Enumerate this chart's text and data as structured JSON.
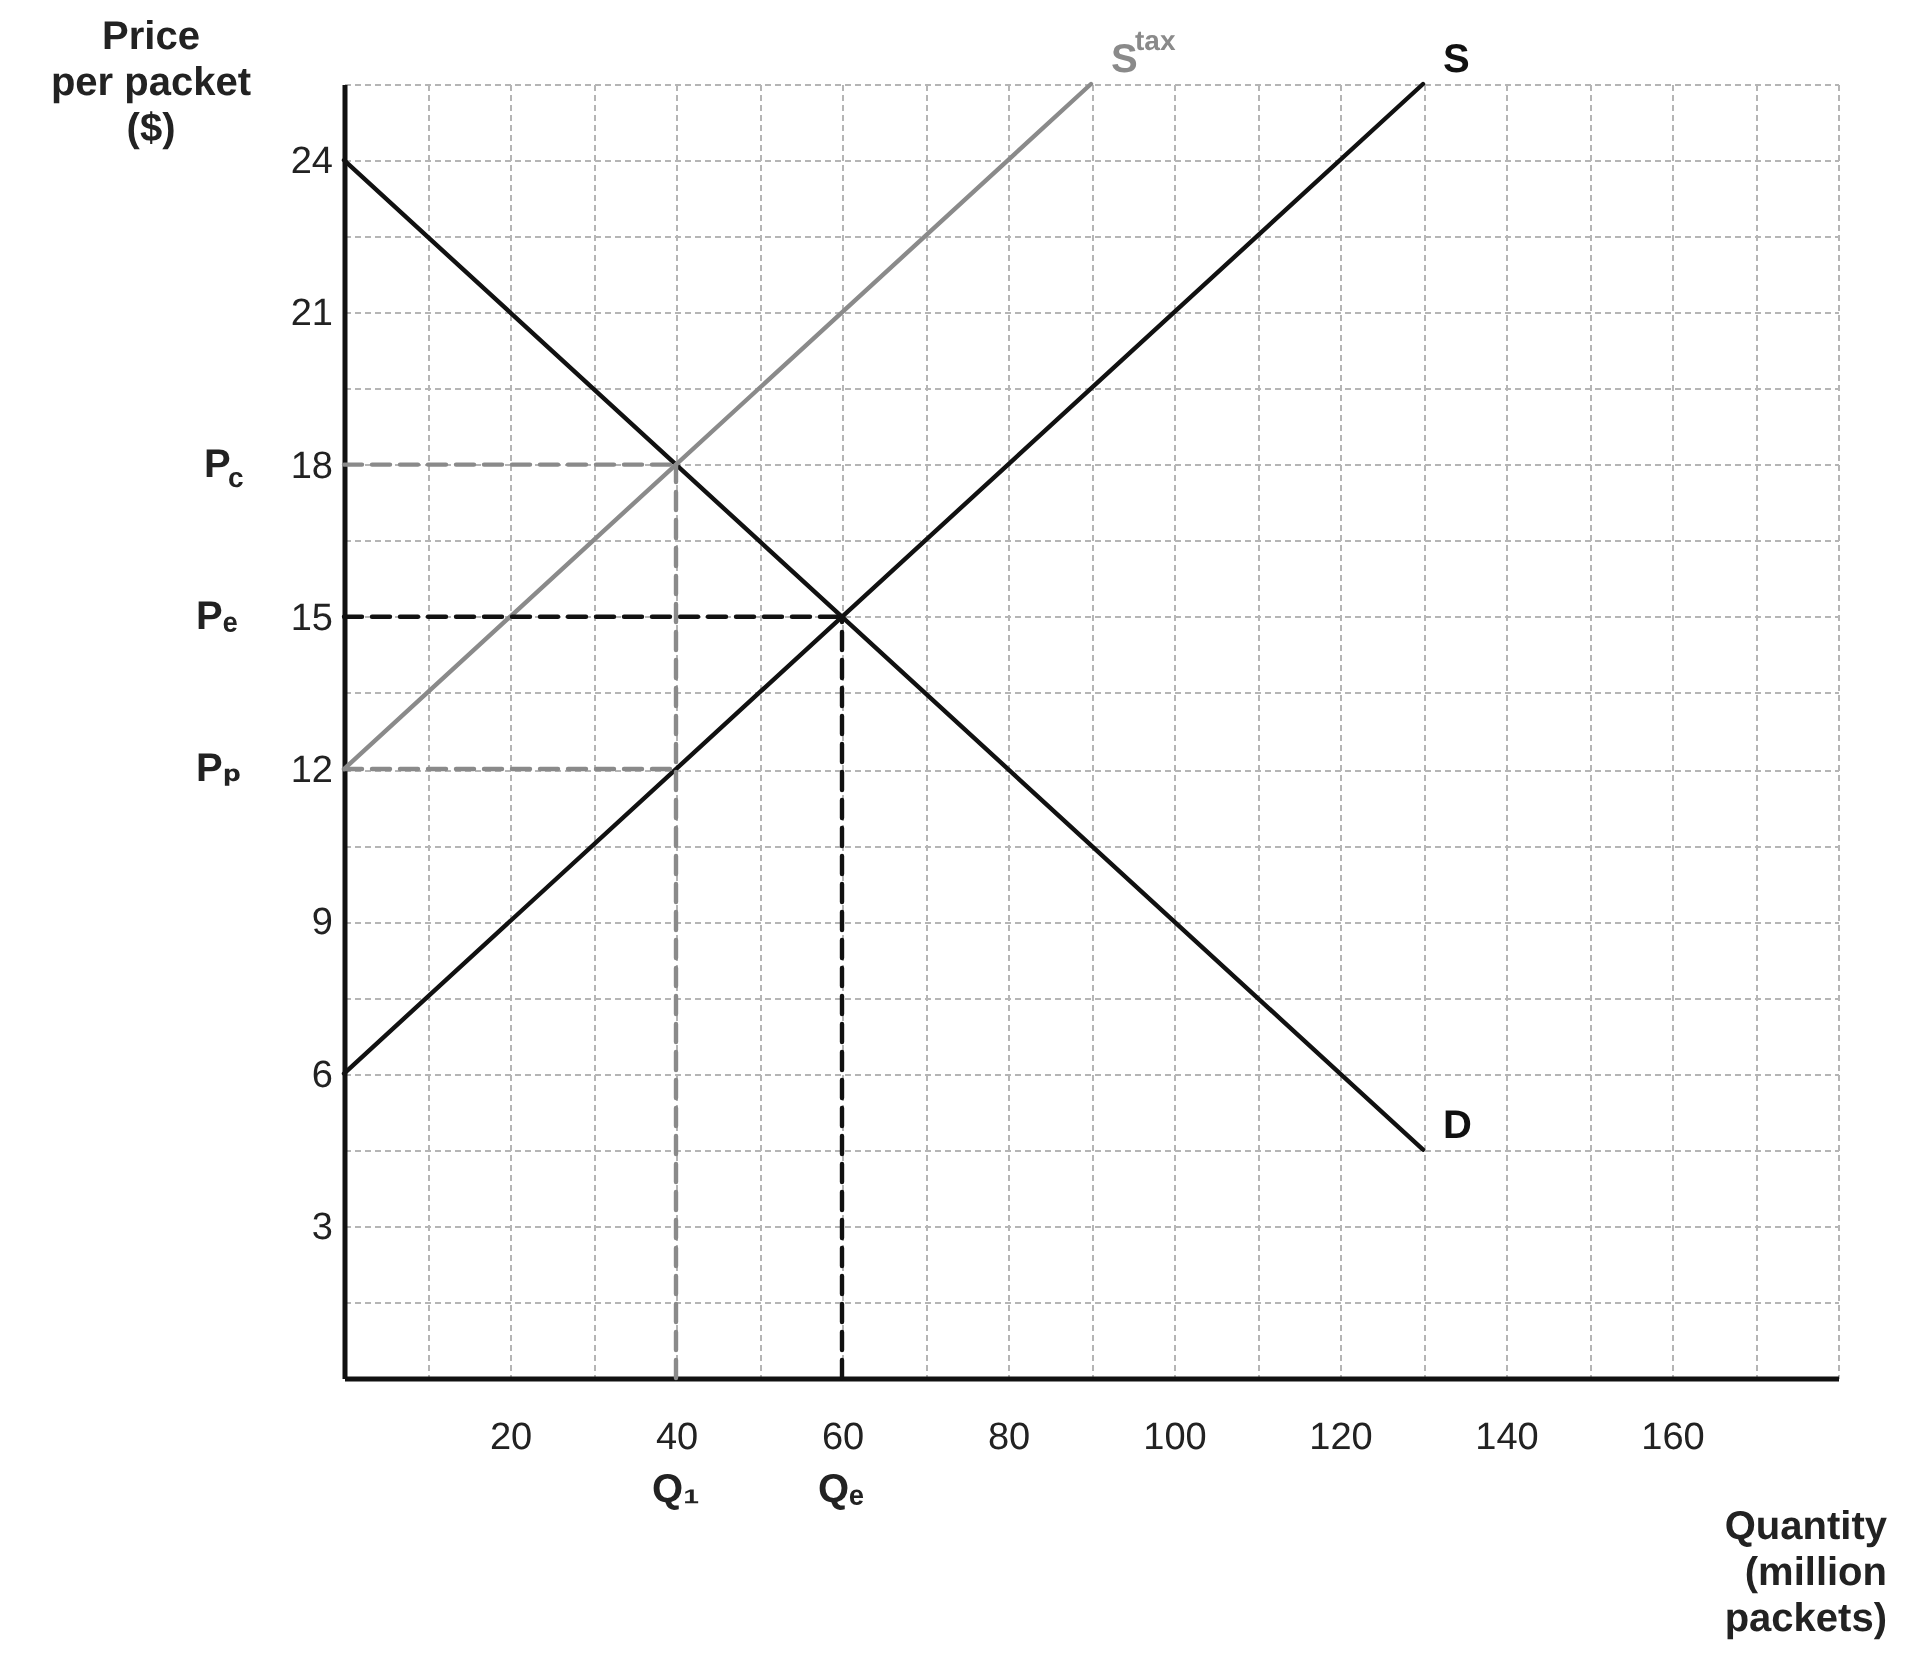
{
  "chart_data": {
    "type": "line",
    "xlabel": "Quantity\n(million\npackets)",
    "ylabel": "Price\nper packet\n($)",
    "xlim": [
      0,
      180
    ],
    "ylim": [
      0,
      25.5
    ],
    "xticks": [
      {
        "value": 10,
        "label": null
      },
      20,
      {
        "value": 30,
        "label": null
      },
      40,
      {
        "value": 50,
        "label": null
      },
      60,
      {
        "value": 70,
        "label": null
      },
      80,
      {
        "value": 90,
        "label": null
      },
      100,
      {
        "value": 110,
        "label": null
      },
      120,
      {
        "value": 130,
        "label": null
      },
      140,
      {
        "value": 150,
        "label": null
      },
      160,
      {
        "value": 170,
        "label": null
      },
      {
        "value": 180,
        "label": null
      }
    ],
    "yticks": [
      {
        "value": 1.5,
        "label": null
      },
      3,
      {
        "value": 4.5,
        "label": null
      },
      6,
      {
        "value": 7.5,
        "label": null
      },
      9,
      {
        "value": 10.5,
        "label": null
      },
      12,
      {
        "value": 13.5,
        "label": null
      },
      15,
      {
        "value": 16.5,
        "label": null
      },
      18,
      {
        "value": 19.5,
        "label": null
      },
      21,
      {
        "value": 22.5,
        "label": null
      },
      24,
      {
        "value": 25.5,
        "label": null
      }
    ],
    "grid": true,
    "marker": "none",
    "series": [
      {
        "name": "D",
        "color": "#111111",
        "x": [
          0,
          130
        ],
        "values": [
          24,
          4.5
        ]
      },
      {
        "name": "S",
        "color": "#111111",
        "x": [
          0,
          130
        ],
        "values": [
          6,
          25.5
        ]
      },
      {
        "name": "S$^{tax}$",
        "color": "#8a8a8a",
        "x": [
          0,
          90
        ],
        "values": [
          12,
          25.5
        ]
      },
      {
        "color": "#111111",
        "line_style": "dashed",
        "x": [
          0,
          60
        ],
        "values": [
          15,
          15
        ]
      },
      {
        "color": "#111111",
        "line_style": "dashed",
        "x": [
          60,
          60
        ],
        "values": [
          0,
          15
        ]
      },
      {
        "color": "#8a8a8a",
        "line_style": "dashed",
        "x": [
          0,
          40
        ],
        "values": [
          18,
          18
        ]
      },
      {
        "color": "#8a8a8a",
        "line_style": "dashed",
        "x": [
          0,
          40
        ],
        "values": [
          12,
          12
        ]
      },
      {
        "color": "#8a8a8a",
        "line_style": "dashed",
        "x": [
          40,
          40
        ],
        "values": [
          0,
          18
        ]
      }
    ],
    "annotations": [
      {
        "text": "P$_{c}$",
        "x": 0,
        "y": 18
      },
      {
        "text": "Pₑ",
        "x": 0,
        "y": 15
      },
      {
        "text": "Pₚ",
        "x": 0,
        "y": 12
      },
      {
        "text": "Q₁",
        "x": 40,
        "y": 0
      },
      {
        "text": "Qₑ",
        "x": 60,
        "y": 0
      }
    ]
  }
}
